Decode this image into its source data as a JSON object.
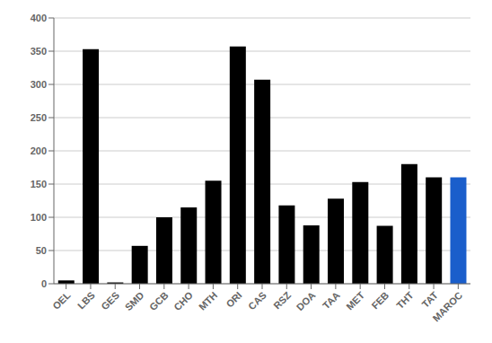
{
  "chart_data": {
    "type": "bar",
    "categories": [
      "OEL",
      "LBS",
      "GES",
      "SMD",
      "GCB",
      "CHO",
      "MTH",
      "ORI",
      "CAS",
      "RSZ",
      "DOA",
      "TAA",
      "MET",
      "FEB",
      "THT",
      "TAT",
      "MAROC"
    ],
    "values": [
      5,
      353,
      2,
      57,
      100,
      115,
      155,
      357,
      307,
      118,
      88,
      128,
      153,
      87,
      180,
      160,
      160
    ],
    "colors": [
      "#000000",
      "#000000",
      "#000000",
      "#000000",
      "#000000",
      "#000000",
      "#000000",
      "#000000",
      "#000000",
      "#000000",
      "#000000",
      "#000000",
      "#000000",
      "#000000",
      "#000000",
      "#000000",
      "#1a5ecb"
    ],
    "ylim": [
      0,
      400
    ],
    "yticks": [
      0,
      50,
      100,
      150,
      200,
      250,
      300,
      350,
      400
    ],
    "grid": true
  }
}
